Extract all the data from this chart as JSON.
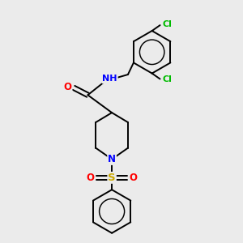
{
  "bg_color": "#ebebeb",
  "bond_color": "#000000",
  "bond_width": 1.4,
  "atom_colors": {
    "O": "#ff0000",
    "N": "#0000ff",
    "S": "#ccaa00",
    "Cl": "#00bb00",
    "C": "#000000"
  },
  "font_size": 8.5,
  "title": ""
}
